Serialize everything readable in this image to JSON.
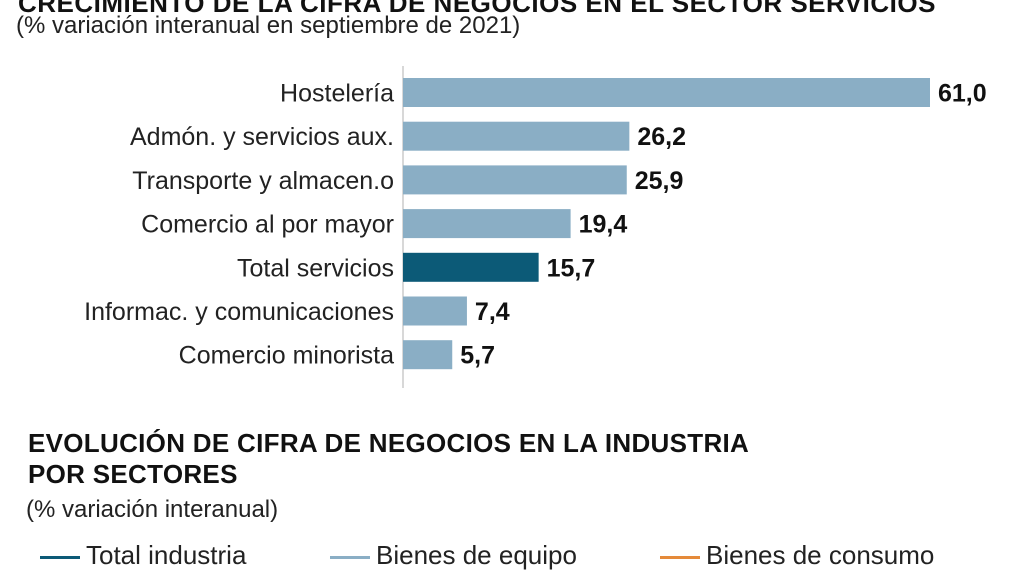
{
  "chart_data": [
    {
      "type": "bar",
      "orientation": "horizontal",
      "title": "CRECIMIENTO DE LA CIFRA DE NEGOCIOS EN EL SECTOR SERVICIOS",
      "subtitle": "(% variación interanual en septiembre de 2021)",
      "categories": [
        "Hostelería",
        "Admón. y servicios aux.",
        "Transporte y almacen.o",
        "Comercio al por mayor",
        "Total servicios",
        "Informac. y comunicaciones",
        "Comercio minorista"
      ],
      "values": [
        61.0,
        26.2,
        25.9,
        19.4,
        15.7,
        7.4,
        5.7
      ],
      "value_labels": [
        "61,0",
        "26,2",
        "25,9",
        "19,4",
        "15,7",
        "7,4",
        "5,7"
      ],
      "highlight": "Total servicios",
      "xlim": [
        0,
        61.0
      ],
      "colors": {
        "bar": "#8aaec5",
        "highlight": "#0c5a77",
        "axis": "#cccccc"
      }
    },
    {
      "type": "line",
      "title_lines": [
        "EVOLUCIÓN DE CIFRA DE NEGOCIOS EN LA INDUSTRIA",
        "POR SECTORES"
      ],
      "subtitle": "(% variación interanual)",
      "legend": [
        {
          "name": "Total industria",
          "color": "#0c5a77"
        },
        {
          "name": "Bienes de equipo",
          "color": "#8aaec5"
        },
        {
          "name": "Bienes de consumo",
          "color": "#e58a3a"
        }
      ]
    }
  ]
}
